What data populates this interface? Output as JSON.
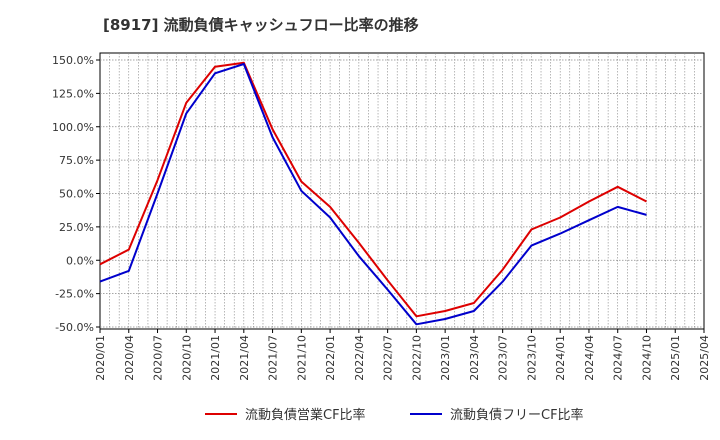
{
  "chart_data": {
    "type": "line",
    "title": "[8917]  流動負債キャッシュフロー比率の推移",
    "xlabel": "",
    "ylabel": "",
    "x_ticks": [
      "2020/01",
      "2020/04",
      "2020/07",
      "2020/10",
      "2021/01",
      "2021/04",
      "2021/07",
      "2021/10",
      "2022/01",
      "2022/04",
      "2022/07",
      "2022/10",
      "2023/01",
      "2023/04",
      "2023/07",
      "2023/10",
      "2024/01",
      "2024/04",
      "2024/07",
      "2024/10",
      "2025/01",
      "2025/04"
    ],
    "y_ticks": [
      "150.0%",
      "125.0%",
      "100.0%",
      "75.0%",
      "50.0%",
      "25.0%",
      "0.0%",
      "-25.0%",
      "-50.0%"
    ],
    "y_tick_values": [
      150,
      125,
      100,
      75,
      50,
      25,
      0,
      -25,
      -50
    ],
    "ylim": [
      -50,
      150
    ],
    "grid": true,
    "legend_position": "bottom",
    "x": [
      "2020/01",
      "2020/04",
      "2020/07",
      "2020/10",
      "2021/01",
      "2021/04",
      "2021/07",
      "2021/10",
      "2022/01",
      "2022/04",
      "2022/07",
      "2022/10",
      "2023/01",
      "2023/04",
      "2023/07",
      "2023/10",
      "2024/01",
      "2024/04",
      "2024/07",
      "2024/10"
    ],
    "series": [
      {
        "name": "流動負債営業CF比率",
        "color": "#dd0000",
        "values": [
          -3,
          8,
          60,
          118,
          145,
          148,
          98,
          59,
          40,
          13,
          -15,
          -42,
          -38,
          -32,
          -7,
          23,
          32,
          44,
          55,
          44
        ]
      },
      {
        "name": "流動負債フリーCF比率",
        "color": "#0000cc",
        "values": [
          -16,
          -8,
          50,
          110,
          140,
          147,
          92,
          52,
          32,
          3,
          -22,
          -48,
          -44,
          -38,
          -16,
          11,
          20,
          30,
          40,
          34
        ]
      }
    ]
  }
}
